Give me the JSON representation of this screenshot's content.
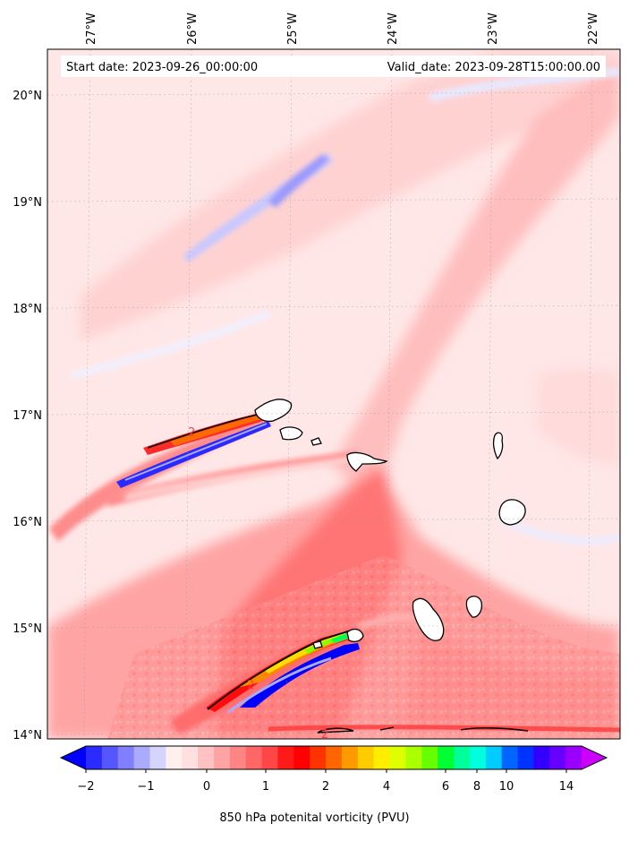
{
  "map": {
    "start_date_label": "Start date: 2023-09-26_00:00:00",
    "valid_date_label": "Valid_date: 2023-09-28T15:00:00.00",
    "lon_labels": [
      "27°W",
      "26°W",
      "25°W",
      "24°W",
      "23°W",
      "22°W"
    ],
    "lat_labels": [
      "20°N",
      "19°N",
      "18°N",
      "17°N",
      "16°N",
      "15°N",
      "14°N"
    ],
    "contour_label": "2"
  },
  "colorbar": {
    "ticks": [
      "−2",
      "−1",
      "0",
      "1",
      "2",
      "4",
      "6",
      "8",
      "10",
      "14"
    ],
    "label": "850 hPa potenital vorticity (PVU)",
    "colors": [
      "#0000ff",
      "#2b2bff",
      "#5656ff",
      "#7f7fff",
      "#aaaaff",
      "#d4d4ff",
      "#fff0f0",
      "#ffe0e0",
      "#ffc2c2",
      "#ffa3a3",
      "#ff8585",
      "#ff6666",
      "#ff4747",
      "#ff1a1a",
      "#ff0000",
      "#ff3300",
      "#ff6600",
      "#ff9900",
      "#ffcc00",
      "#ffee00",
      "#ddff00",
      "#aaff00",
      "#66ff00",
      "#00ff33",
      "#00ff99",
      "#00ffdd",
      "#00ccff",
      "#0066ff",
      "#0033ff",
      "#3300ff",
      "#6600ff",
      "#9900ff",
      "#cc00ff"
    ]
  }
}
